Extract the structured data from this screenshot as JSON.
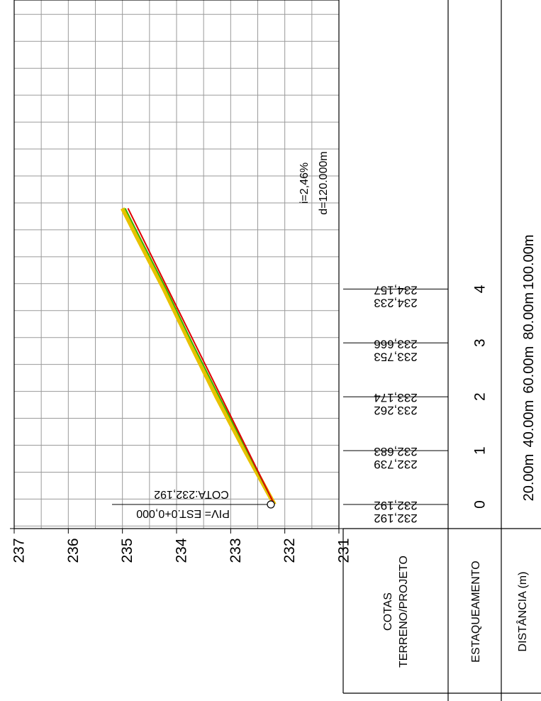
{
  "chart_data": {
    "type": "line",
    "title": "",
    "xlabel": "",
    "ylabel": "",
    "elevation_ticks": [
      "231",
      "232",
      "233",
      "234",
      "235",
      "236",
      "237"
    ],
    "ylim": [
      231,
      237
    ],
    "xlim": [
      0,
      110
    ],
    "stations": [
      {
        "estaca": "0",
        "terreno": "232,192",
        "projeto": "232,192"
      },
      {
        "estaca": "1",
        "terreno": "232,739",
        "projeto": "232,683"
      },
      {
        "estaca": "2",
        "terreno": "233,262",
        "projeto": "233,174"
      },
      {
        "estaca": "3",
        "terreno": "233,753",
        "projeto": "233,666"
      },
      {
        "estaca": "4",
        "terreno": "234,233",
        "projeto": "234,157"
      }
    ],
    "distances": [
      "20.00m",
      "40.00m",
      "60.00m",
      "80.00m",
      "100.00m"
    ],
    "series": [
      {
        "name": "",
        "color": "#e8c200",
        "x": [
          0,
          20,
          40,
          60,
          80,
          100,
          110
        ],
        "y": [
          232.192,
          232.739,
          233.262,
          233.753,
          234.233,
          234.75,
          235.0
        ]
      },
      {
        "name": "",
        "color": "#3cb400",
        "x": [
          0,
          20,
          40,
          60,
          80,
          100,
          110
        ],
        "y": [
          232.192,
          232.7,
          233.21,
          233.71,
          234.19,
          234.7,
          234.95
        ]
      },
      {
        "name": "",
        "color": "#e00000",
        "x": [
          0,
          110
        ],
        "y": [
          232.192,
          234.898
        ]
      }
    ],
    "annotations": {
      "piv": "PIV= EST.0+0,000",
      "cota": "COTA:232,192",
      "slope": "i=2,46%",
      "length": "d=120.000m"
    },
    "grid": true
  },
  "table": {
    "row_cotas_line1": "COTAS",
    "row_cotas_line2": "TERRENO/PROJETO",
    "row_estaqueamento": "ESTAQUEAMENTO",
    "row_distancia": "DISTÂNCIA (m)"
  }
}
